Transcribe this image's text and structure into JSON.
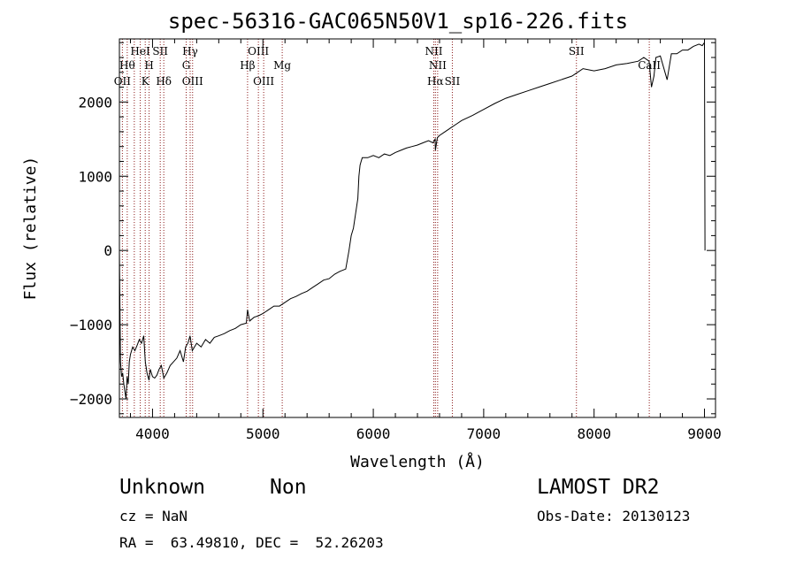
{
  "header": {
    "title": "spec-56316-GAC065N50V1_sp16-226.fits"
  },
  "info": {
    "class": "Unknown",
    "subclass": "Non",
    "survey": "LAMOST DR2",
    "cz": "cz = NaN",
    "obs_date": "Obs-Date: 20130123",
    "radec": "RA =  63.49810, DEC =  52.26203"
  },
  "chart_data": {
    "type": "line",
    "title": "spec-56316-GAC065N50V1_sp16-226.fits",
    "xlabel": "Wavelength (Å)",
    "ylabel": "Flux (relative)",
    "xlim": [
      3700,
      9100
    ],
    "ylim": [
      -2250,
      2850
    ],
    "xticks": [
      4000,
      5000,
      6000,
      7000,
      8000,
      9000
    ],
    "xtick_labels": [
      "4000",
      "5000",
      "6000",
      "7000",
      "8000",
      "9000"
    ],
    "yticks": [
      -2000,
      -1000,
      0,
      1000,
      2000
    ],
    "ytick_labels": [
      "−2000",
      "−1000",
      "0",
      "1000",
      "2000"
    ],
    "grid": false,
    "line_color": "#000000",
    "marker_color": "#8b1a1a",
    "series": [
      {
        "x": [
          3700,
          3710,
          3720,
          3730,
          3740,
          3750,
          3760,
          3770,
          3780,
          3790,
          3800,
          3820,
          3840,
          3860,
          3880,
          3900,
          3920,
          3935,
          3950,
          3968,
          3980,
          4000,
          4020,
          4040,
          4060,
          4080,
          4102,
          4130,
          4160,
          4190,
          4220,
          4250,
          4280,
          4300,
          4320,
          4340,
          4360,
          4380,
          4400,
          4440,
          4480,
          4520,
          4560,
          4600,
          4650,
          4700,
          4750,
          4800,
          4850,
          4861,
          4880,
          4920,
          4960,
          5000,
          5050,
          5100,
          5150,
          5200,
          5250,
          5300,
          5350,
          5400,
          5450,
          5500,
          5550,
          5600,
          5650,
          5700,
          5750,
          5780,
          5800,
          5820,
          5840,
          5860,
          5870,
          5880,
          5890,
          5900,
          5950,
          6000,
          6050,
          6100,
          6150,
          6200,
          6250,
          6300,
          6350,
          6400,
          6450,
          6500,
          6540,
          6560,
          6563,
          6580,
          6600,
          6650,
          6700,
          6750,
          6800,
          6900,
          7000,
          7100,
          7200,
          7300,
          7400,
          7500,
          7600,
          7700,
          7800,
          7850,
          7900,
          8000,
          8100,
          8200,
          8300,
          8400,
          8450,
          8498,
          8520,
          8542,
          8560,
          8600,
          8662,
          8700,
          8750,
          8800,
          8850,
          8900,
          8950,
          8980,
          9000,
          9005
        ],
        "y": [
          0,
          -1500,
          -1700,
          -1650,
          -1800,
          -1900,
          -2000,
          -1700,
          -1800,
          -1500,
          -1400,
          -1300,
          -1350,
          -1280,
          -1200,
          -1250,
          -1150,
          -1500,
          -1650,
          -1750,
          -1600,
          -1700,
          -1720,
          -1680,
          -1600,
          -1550,
          -1720,
          -1650,
          -1550,
          -1500,
          -1450,
          -1350,
          -1500,
          -1300,
          -1250,
          -1150,
          -1350,
          -1300,
          -1250,
          -1300,
          -1200,
          -1250,
          -1170,
          -1150,
          -1120,
          -1080,
          -1050,
          -1000,
          -980,
          -800,
          -950,
          -900,
          -880,
          -850,
          -800,
          -750,
          -750,
          -700,
          -650,
          -620,
          -580,
          -550,
          -500,
          -450,
          -400,
          -380,
          -320,
          -280,
          -250,
          0,
          200,
          300,
          500,
          700,
          1000,
          1150,
          1200,
          1250,
          1250,
          1280,
          1250,
          1300,
          1280,
          1320,
          1350,
          1380,
          1400,
          1420,
          1450,
          1480,
          1450,
          1500,
          1350,
          1520,
          1550,
          1600,
          1650,
          1700,
          1750,
          1820,
          1900,
          1980,
          2050,
          2100,
          2150,
          2200,
          2250,
          2300,
          2350,
          2400,
          2450,
          2420,
          2450,
          2500,
          2520,
          2550,
          2600,
          2550,
          2200,
          2350,
          2600,
          2620,
          2300,
          2650,
          2650,
          2700,
          2700,
          2750,
          2780,
          2760,
          2800,
          0
        ]
      }
    ],
    "line_markers": [
      {
        "x": 3727,
        "label": "OII",
        "row": 3
      },
      {
        "x": 3771,
        "label": "Hθ",
        "row": 2
      },
      {
        "x": 3835,
        "label": "",
        "row": 0
      },
      {
        "x": 3889,
        "label": "HeI",
        "row": 1
      },
      {
        "x": 3934,
        "label": "K",
        "row": 3
      },
      {
        "x": 3969,
        "label": "H",
        "row": 2
      },
      {
        "x": 4070,
        "label": "SII",
        "row": 1
      },
      {
        "x": 4102,
        "label": "Hδ",
        "row": 3
      },
      {
        "x": 4305,
        "label": "G",
        "row": 2
      },
      {
        "x": 4341,
        "label": "Hγ",
        "row": 1
      },
      {
        "x": 4363,
        "label": "OIII",
        "row": 3
      },
      {
        "x": 4861,
        "label": "Hβ",
        "row": 2
      },
      {
        "x": 4959,
        "label": "OIII",
        "row": 1
      },
      {
        "x": 5007,
        "label": "OIII",
        "row": 3
      },
      {
        "x": 5175,
        "label": "Mg",
        "row": 2
      },
      {
        "x": 6548,
        "label": "NII",
        "row": 1
      },
      {
        "x": 6563,
        "label": "Hα",
        "row": 3
      },
      {
        "x": 6583,
        "label": "NII",
        "row": 2
      },
      {
        "x": 6716,
        "label": "SII",
        "row": 3
      },
      {
        "x": 7840,
        "label": "SII",
        "row": 1
      },
      {
        "x": 8500,
        "label": "CaII",
        "row": 2
      }
    ]
  }
}
